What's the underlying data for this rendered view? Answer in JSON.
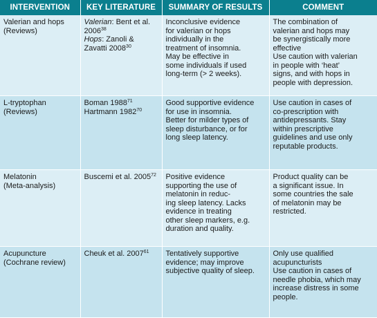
{
  "headers": [
    "INTERVENTION",
    "KEY LITERATURE",
    "SUMMARY OF RESULTS",
    "COMMENT"
  ],
  "rows": [
    {
      "intervention": [
        "Valerian and hops",
        "(Reviews)"
      ],
      "literature": {
        "l1_label": "Valerian",
        "l1_text": ": Bent et al.",
        "l2_text": "2006",
        "l2_ref": "38",
        "l3_label": "Hops",
        "l3_text": ": Zanoli &",
        "l4_text": "Zavatti 2008",
        "l4_ref": "30"
      },
      "summary": [
        "Inconclusive evidence",
        "for valerian or hops",
        "individually in the",
        "treatment of insomnia.",
        "May be effective in",
        "some individuals if used",
        "long-term (> 2 weeks)."
      ],
      "comment": [
        "The combination of",
        "valerian and hops may",
        "be synergistically more",
        "effective",
        "Use caution with valerian",
        "in people with ‘heat’",
        "signs, and with hops in",
        "people with depression."
      ]
    },
    {
      "intervention": [
        "L-tryptophan",
        "(Reviews)"
      ],
      "literature": {
        "l1_text": "Boman 1988",
        "l1_ref": "71",
        "l2_text": "Hartmann 1982",
        "l2_ref": "70"
      },
      "summary": [
        "Good supportive evidence",
        "for use in insomnia.",
        "Better for milder types of",
        "sleep disturbance, or for",
        "long sleep latency."
      ],
      "comment": [
        "Use caution in cases of",
        "co-prescription with",
        "antidepressants. Stay",
        "within prescriptive",
        "guidelines and use only",
        "reputable products."
      ]
    },
    {
      "intervention": [
        "Melatonin",
        "(Meta-analysis)"
      ],
      "literature": {
        "l1_text": "Buscemi et al. 2005",
        "l1_ref": "72"
      },
      "summary": [
        "Positive evidence",
        "supporting the use of",
        "melatonin in reduc-",
        "ing sleep latency. Lacks",
        "evidence in treating",
        "other sleep markers, e.g.",
        "duration and quality."
      ],
      "comment": [
        "Product quality can be",
        "a significant issue. In",
        "some countries the sale",
        "of melatonin may be",
        "restricted."
      ]
    },
    {
      "intervention": [
        "Acupuncture",
        "(Cochrane review)"
      ],
      "literature": {
        "l1_text": "Cheuk et al. 2007",
        "l1_ref": "61"
      },
      "summary": [
        "Tentatively supportive",
        "evidence; may improve",
        "subjective quality of sleep."
      ],
      "comment": [
        "Only use qualified",
        "acupuncturists",
        "Use caution in cases of",
        "needle phobia, which may",
        "increase distress in some",
        "people."
      ]
    }
  ]
}
